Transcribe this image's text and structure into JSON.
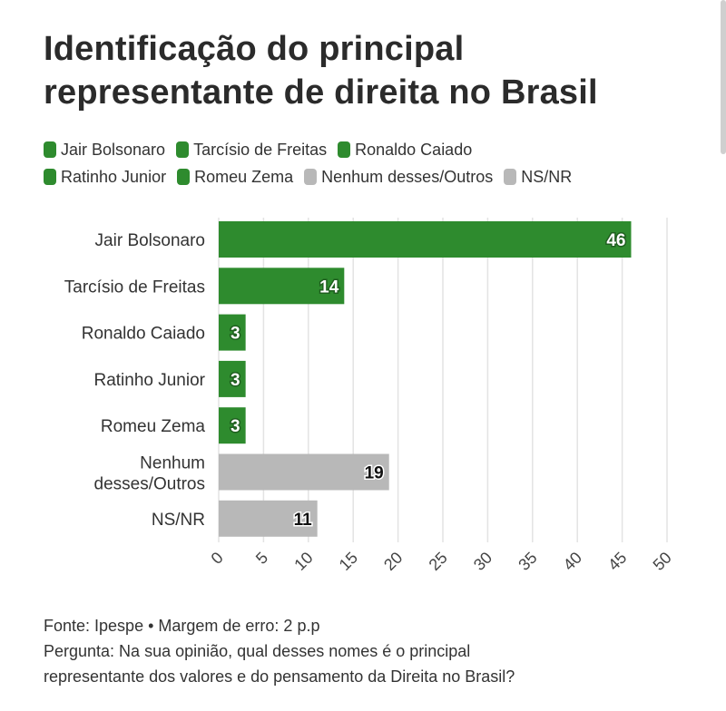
{
  "title_line1": "Identificação do principal",
  "title_line2": "representante de direita no Brasil",
  "legend": [
    [
      {
        "label": "Jair Bolsonaro",
        "color": "#2e8b2e"
      },
      {
        "label": "Tarcísio de Freitas",
        "color": "#2e8b2e"
      },
      {
        "label": "Ronaldo Caiado",
        "color": "#2e8b2e"
      }
    ],
    [
      {
        "label": "Ratinho Junior",
        "color": "#2e8b2e"
      },
      {
        "label": "Romeu Zema",
        "color": "#2e8b2e"
      },
      {
        "label": "Nenhum desses/Outros",
        "color": "#b8b8b8"
      },
      {
        "label": "NS/NR",
        "color": "#b8b8b8"
      }
    ]
  ],
  "chart_data": {
    "type": "bar",
    "orientation": "horizontal",
    "categories": [
      "Jair Bolsonaro",
      "Tarcísio de Freitas",
      "Ronaldo Caiado",
      "Ratinho Junior",
      "Romeu Zema",
      "Nenhum desses/Outros",
      "NS/NR"
    ],
    "category_lines": [
      [
        "Jair Bolsonaro"
      ],
      [
        "Tarcísio de Freitas"
      ],
      [
        "Ronaldo Caiado"
      ],
      [
        "Ratinho Junior"
      ],
      [
        "Romeu Zema"
      ],
      [
        "Nenhum",
        "desses/Outros"
      ],
      [
        "NS/NR"
      ]
    ],
    "values": [
      46,
      14,
      3,
      3,
      3,
      19,
      11
    ],
    "colors": [
      "#2e8b2e",
      "#2e8b2e",
      "#2e8b2e",
      "#2e8b2e",
      "#2e8b2e",
      "#b8b8b8",
      "#b8b8b8"
    ],
    "xlim": [
      0,
      50
    ],
    "xticks": [
      0,
      5,
      10,
      15,
      20,
      25,
      30,
      35,
      40,
      45,
      50
    ],
    "grid": true,
    "legend_position": "top"
  },
  "footer_source": "Fonte: Ipespe • Margem de erro: 2 p.p",
  "footer_question_line1": "Pergunta: Na sua opinião, qual desses nomes é o principal",
  "footer_question_line2": "representante dos valores e do pensamento da Direita no Brasil?"
}
